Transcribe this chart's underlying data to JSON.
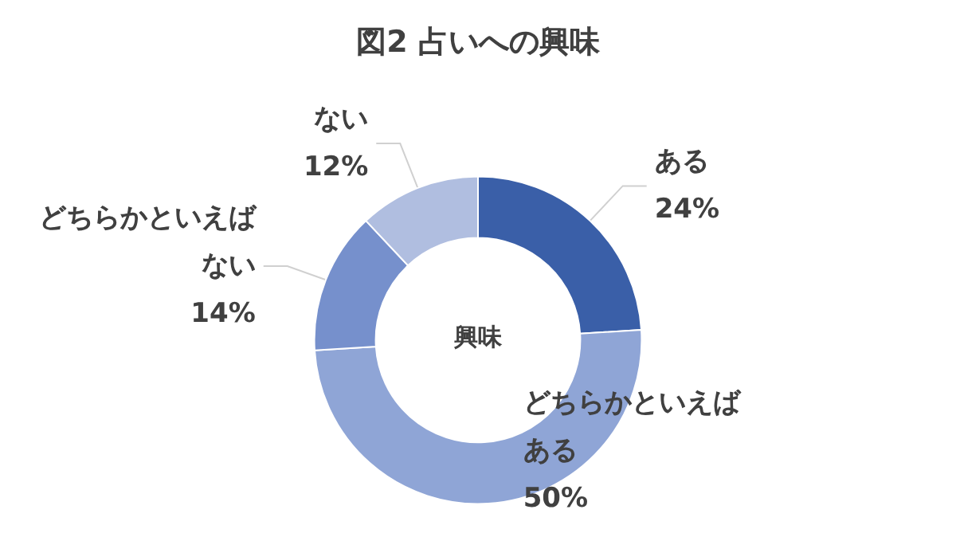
{
  "chart_data": {
    "type": "donut",
    "title": "図2 占いへの興味",
    "categories": [
      "ある",
      "どちらかといえばある",
      "どちらかといえばない",
      "ない"
    ],
    "values": [
      24,
      50,
      14,
      12
    ],
    "colors": [
      "#3a5fa8",
      "#8fa5d6",
      "#7690cc",
      "#b0bee0"
    ],
    "annotations": [
      "興味"
    ],
    "value_labels": [
      "24%",
      "50%",
      "14%",
      "12%"
    ]
  }
}
